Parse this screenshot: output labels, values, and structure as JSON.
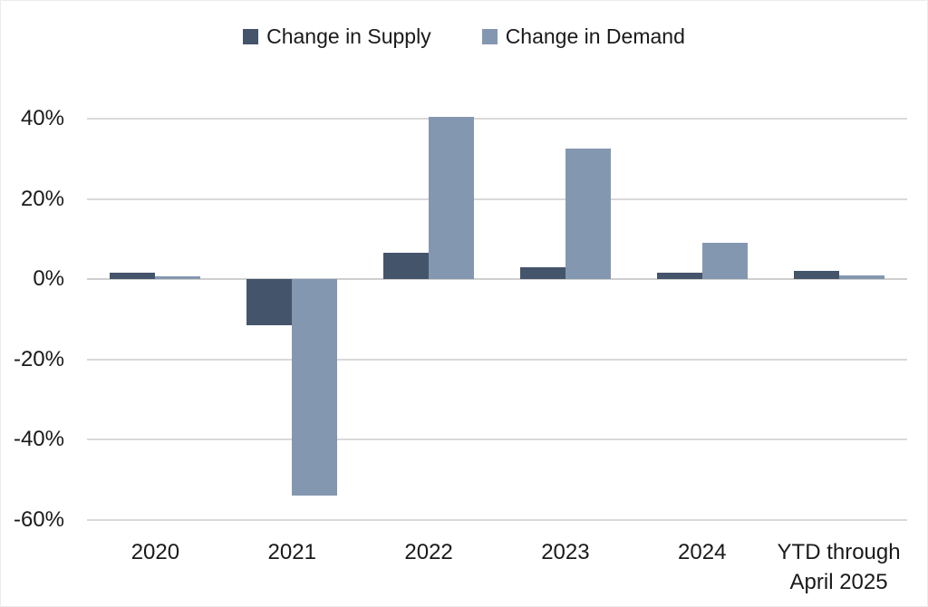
{
  "legend": {
    "supply_label": "Change in Supply",
    "demand_label": "Change in Demand"
  },
  "chart_data": {
    "type": "bar",
    "title": "",
    "xlabel": "",
    "ylabel": "",
    "categories": [
      "2020",
      "2021",
      "2022",
      "2023",
      "2024",
      "YTD through April 2025"
    ],
    "series": [
      {
        "name": "Change in Supply",
        "color": "#44546A",
        "values": [
          1.5,
          -11.5,
          6.5,
          3,
          1.5,
          2
        ]
      },
      {
        "name": "Change in Demand",
        "color": "#8497B0",
        "values": [
          0.7,
          -54,
          40.5,
          32.5,
          9,
          0.8
        ]
      }
    ],
    "ylim": [
      -60,
      40
    ],
    "yticks": [
      40,
      20,
      0,
      -20,
      -40,
      -60
    ],
    "ytick_suffix": "%",
    "grid": "horizontal",
    "gridline_color": "#D9D9D9",
    "legend_position": "top-center",
    "background_color": "#FFFFFF"
  }
}
